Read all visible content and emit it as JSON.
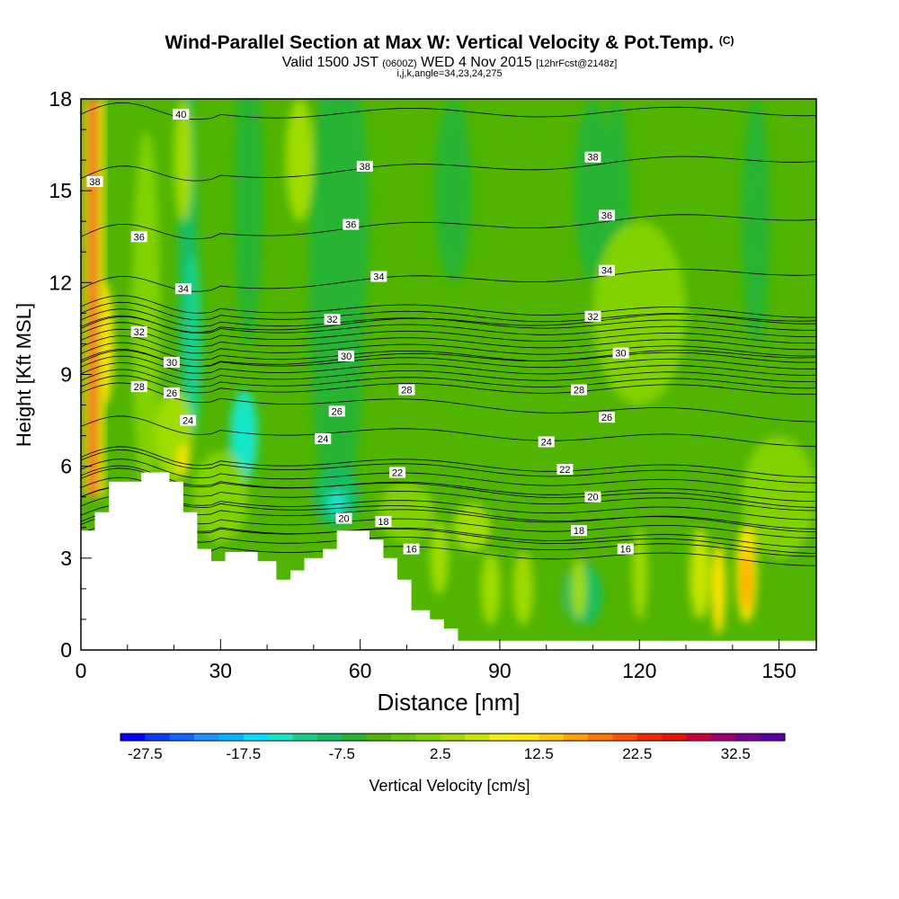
{
  "title": {
    "main": "Wind-Parallel Section at Max W: Vertical Velocity & Pot.Temp.",
    "copyright": "(C)",
    "valid_prefix": "Valid 1500 JST",
    "valid_utc": "(0600Z)",
    "valid_date": "WED 4 Nov 2015",
    "forecast": "[12hrFcst@2148z]",
    "indices": "i,j,k,angle=34,23,24,275"
  },
  "chart_data": {
    "type": "heatmap",
    "xlabel": "Distance [nm]",
    "ylabel": "Height [Kft MSL]",
    "xlim": [
      0,
      158
    ],
    "ylim": [
      0,
      18
    ],
    "xticks": [
      0,
      30,
      60,
      90,
      120,
      150
    ],
    "yticks": [
      0,
      3,
      6,
      9,
      12,
      15,
      18
    ],
    "colorbar": {
      "label": "Vertical Velocity [cm/s]",
      "levels": [
        -30,
        -27.5,
        -25,
        -22.5,
        -20,
        -17.5,
        -15,
        -12.5,
        -10,
        -7.5,
        -5,
        -2.5,
        0,
        2.5,
        5,
        7.5,
        10,
        12.5,
        15,
        17.5,
        22.5,
        25,
        27.5,
        30,
        32.5,
        35,
        37.5,
        40
      ],
      "tick_labels": [
        "-27.5",
        "-17.5",
        "-7.5",
        "2.5",
        "12.5",
        "22.5",
        "32.5"
      ],
      "tick_values": [
        -27.5,
        -17.5,
        -7.5,
        2.5,
        12.5,
        22.5,
        32.5
      ],
      "colors": [
        "#0000ff",
        "#0a3cf5",
        "#1464ff",
        "#1e90ff",
        "#00b4ff",
        "#00dcff",
        "#14e6c8",
        "#14d28c",
        "#14be64",
        "#28b432",
        "#50b400",
        "#64c800",
        "#82d200",
        "#a0dc00",
        "#c8e600",
        "#f0f000",
        "#ffe600",
        "#ffc800",
        "#ffa000",
        "#ff7800",
        "#ff5000",
        "#f02800",
        "#e61400",
        "#c8003c",
        "#a0006e",
        "#780096",
        "#5a00a0"
      ]
    },
    "theta_contours_K": [
      16,
      18,
      20,
      22,
      24,
      26,
      28,
      30,
      32,
      34,
      36,
      38,
      40
    ],
    "contour_labels": [
      {
        "v": "40",
        "x": 21.5,
        "y": 17.5
      },
      {
        "v": "38",
        "x": 3,
        "y": 15.3
      },
      {
        "v": "38",
        "x": 61,
        "y": 15.8
      },
      {
        "v": "38",
        "x": 110,
        "y": 16.1
      },
      {
        "v": "36",
        "x": 12.5,
        "y": 13.5
      },
      {
        "v": "36",
        "x": 58,
        "y": 13.9
      },
      {
        "v": "36",
        "x": 113,
        "y": 14.2
      },
      {
        "v": "34",
        "x": 22,
        "y": 11.8
      },
      {
        "v": "34",
        "x": 64,
        "y": 12.2
      },
      {
        "v": "34",
        "x": 113,
        "y": 12.4
      },
      {
        "v": "32",
        "x": 12.5,
        "y": 10.4
      },
      {
        "v": "32",
        "x": 54,
        "y": 10.8
      },
      {
        "v": "32",
        "x": 110,
        "y": 10.9
      },
      {
        "v": "30",
        "x": 19.5,
        "y": 9.4
      },
      {
        "v": "30",
        "x": 57,
        "y": 9.6
      },
      {
        "v": "30",
        "x": 116,
        "y": 9.7
      },
      {
        "v": "28",
        "x": 12.5,
        "y": 8.6
      },
      {
        "v": "28",
        "x": 70,
        "y": 8.5
      },
      {
        "v": "28",
        "x": 107,
        "y": 8.5
      },
      {
        "v": "26",
        "x": 19.5,
        "y": 8.4
      },
      {
        "v": "26",
        "x": 55,
        "y": 7.8
      },
      {
        "v": "26",
        "x": 113,
        "y": 7.6
      },
      {
        "v": "24",
        "x": 23,
        "y": 7.5
      },
      {
        "v": "24",
        "x": 52,
        "y": 6.9
      },
      {
        "v": "24",
        "x": 100,
        "y": 6.8
      },
      {
        "v": "22",
        "x": 68,
        "y": 5.8
      },
      {
        "v": "22",
        "x": 104,
        "y": 5.9
      },
      {
        "v": "20",
        "x": 56.5,
        "y": 4.3
      },
      {
        "v": "20",
        "x": 110,
        "y": 5.0
      },
      {
        "v": "18",
        "x": 65,
        "y": 4.2
      },
      {
        "v": "18",
        "x": 107,
        "y": 3.9
      },
      {
        "v": "16",
        "x": 71,
        "y": 3.3
      },
      {
        "v": "16",
        "x": 117,
        "y": 3.3
      }
    ],
    "terrain_kft": [
      [
        0,
        3.9
      ],
      [
        3,
        3.9
      ],
      [
        3,
        4.5
      ],
      [
        6,
        4.5
      ],
      [
        6,
        5.5
      ],
      [
        13,
        5.5
      ],
      [
        13,
        5.8
      ],
      [
        19,
        5.8
      ],
      [
        19,
        5.5
      ],
      [
        22,
        5.5
      ],
      [
        22,
        4.5
      ],
      [
        25,
        4.5
      ],
      [
        25,
        3.3
      ],
      [
        28,
        3.3
      ],
      [
        28,
        2.9
      ],
      [
        31,
        2.9
      ],
      [
        31,
        3.2
      ],
      [
        38,
        3.2
      ],
      [
        38,
        2.9
      ],
      [
        42,
        2.9
      ],
      [
        42,
        2.3
      ],
      [
        45,
        2.3
      ],
      [
        45,
        2.6
      ],
      [
        48,
        2.6
      ],
      [
        48,
        3.0
      ],
      [
        52,
        3.0
      ],
      [
        52,
        3.3
      ],
      [
        55,
        3.3
      ],
      [
        55,
        3.9
      ],
      [
        62,
        3.9
      ],
      [
        62,
        3.6
      ],
      [
        65,
        3.6
      ],
      [
        65,
        3.0
      ],
      [
        68,
        3.0
      ],
      [
        68,
        2.3
      ],
      [
        71,
        2.3
      ],
      [
        71,
        1.3
      ],
      [
        75,
        1.3
      ],
      [
        75,
        1.0
      ],
      [
        78,
        1.0
      ],
      [
        78,
        0.7
      ],
      [
        81,
        0.7
      ],
      [
        81,
        0.3
      ],
      [
        158,
        0.3
      ]
    ]
  }
}
